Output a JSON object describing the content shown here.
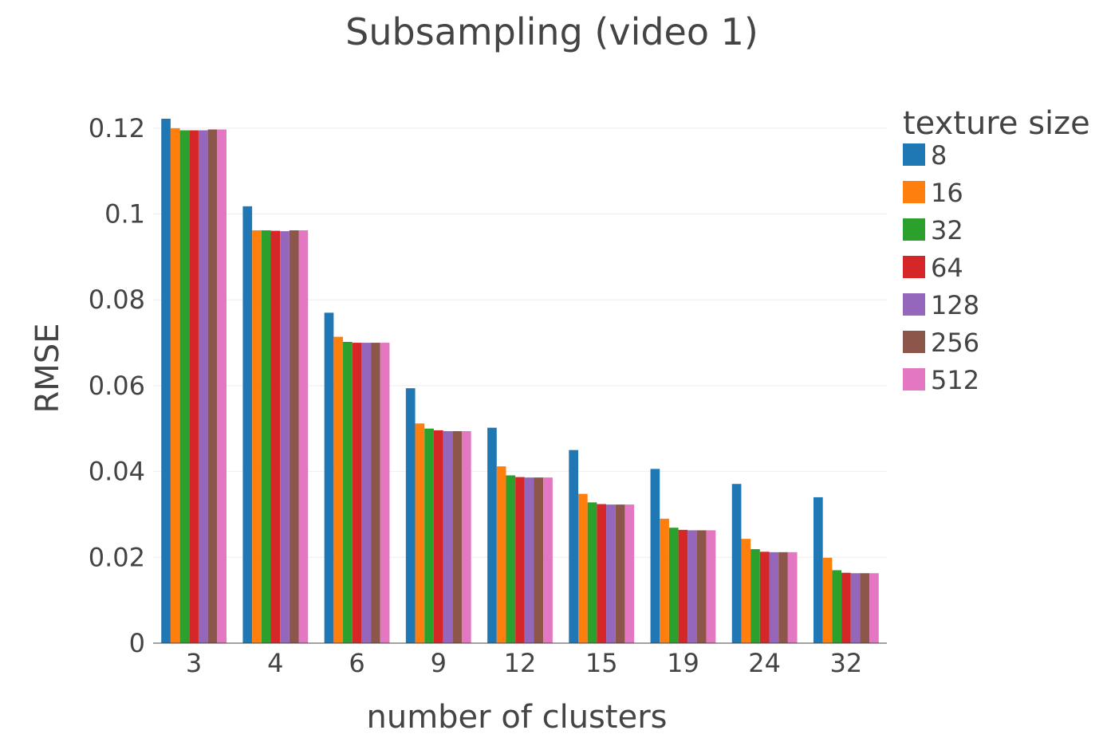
{
  "chart_data": {
    "type": "bar",
    "title": "Subsampling (video 1)",
    "xlabel": "number of clusters",
    "ylabel": "RMSE",
    "legend_title": "texture size",
    "legend_position": "right",
    "grid": true,
    "ylim": [
      0,
      0.1222
    ],
    "yticks": [
      0,
      0.02,
      0.04,
      0.06,
      0.08,
      0.1,
      0.12
    ],
    "ytick_labels": [
      "0",
      "0.02",
      "0.04",
      "0.06",
      "0.08",
      "0.1",
      "0.12"
    ],
    "categories": [
      "3",
      "4",
      "6",
      "9",
      "12",
      "15",
      "19",
      "24",
      "32"
    ],
    "series": [
      {
        "name": "8",
        "color": "#1f77b4",
        "values": [
          0.1222,
          0.1018,
          0.077,
          0.0594,
          0.0502,
          0.045,
          0.0406,
          0.0371,
          0.034
        ]
      },
      {
        "name": "16",
        "color": "#ff7f0e",
        "values": [
          0.12,
          0.0962,
          0.0714,
          0.0512,
          0.0412,
          0.0348,
          0.029,
          0.0243,
          0.0199
        ]
      },
      {
        "name": "32",
        "color": "#2ca02c",
        "values": [
          0.1195,
          0.0962,
          0.0702,
          0.05,
          0.0391,
          0.0328,
          0.0269,
          0.0219,
          0.017
        ]
      },
      {
        "name": "64",
        "color": "#d62728",
        "values": [
          0.1195,
          0.0961,
          0.07,
          0.0496,
          0.0387,
          0.0324,
          0.0264,
          0.0213,
          0.0164
        ]
      },
      {
        "name": "128",
        "color": "#9467bd",
        "values": [
          0.1195,
          0.096,
          0.07,
          0.0494,
          0.0386,
          0.0323,
          0.0263,
          0.0212,
          0.0163
        ]
      },
      {
        "name": "256",
        "color": "#8c564b",
        "values": [
          0.1197,
          0.0962,
          0.07,
          0.0494,
          0.0386,
          0.0323,
          0.0263,
          0.0212,
          0.0163
        ]
      },
      {
        "name": "512",
        "color": "#e377c2",
        "values": [
          0.1197,
          0.0962,
          0.07,
          0.0494,
          0.0386,
          0.0323,
          0.0263,
          0.0212,
          0.0163
        ]
      }
    ]
  }
}
